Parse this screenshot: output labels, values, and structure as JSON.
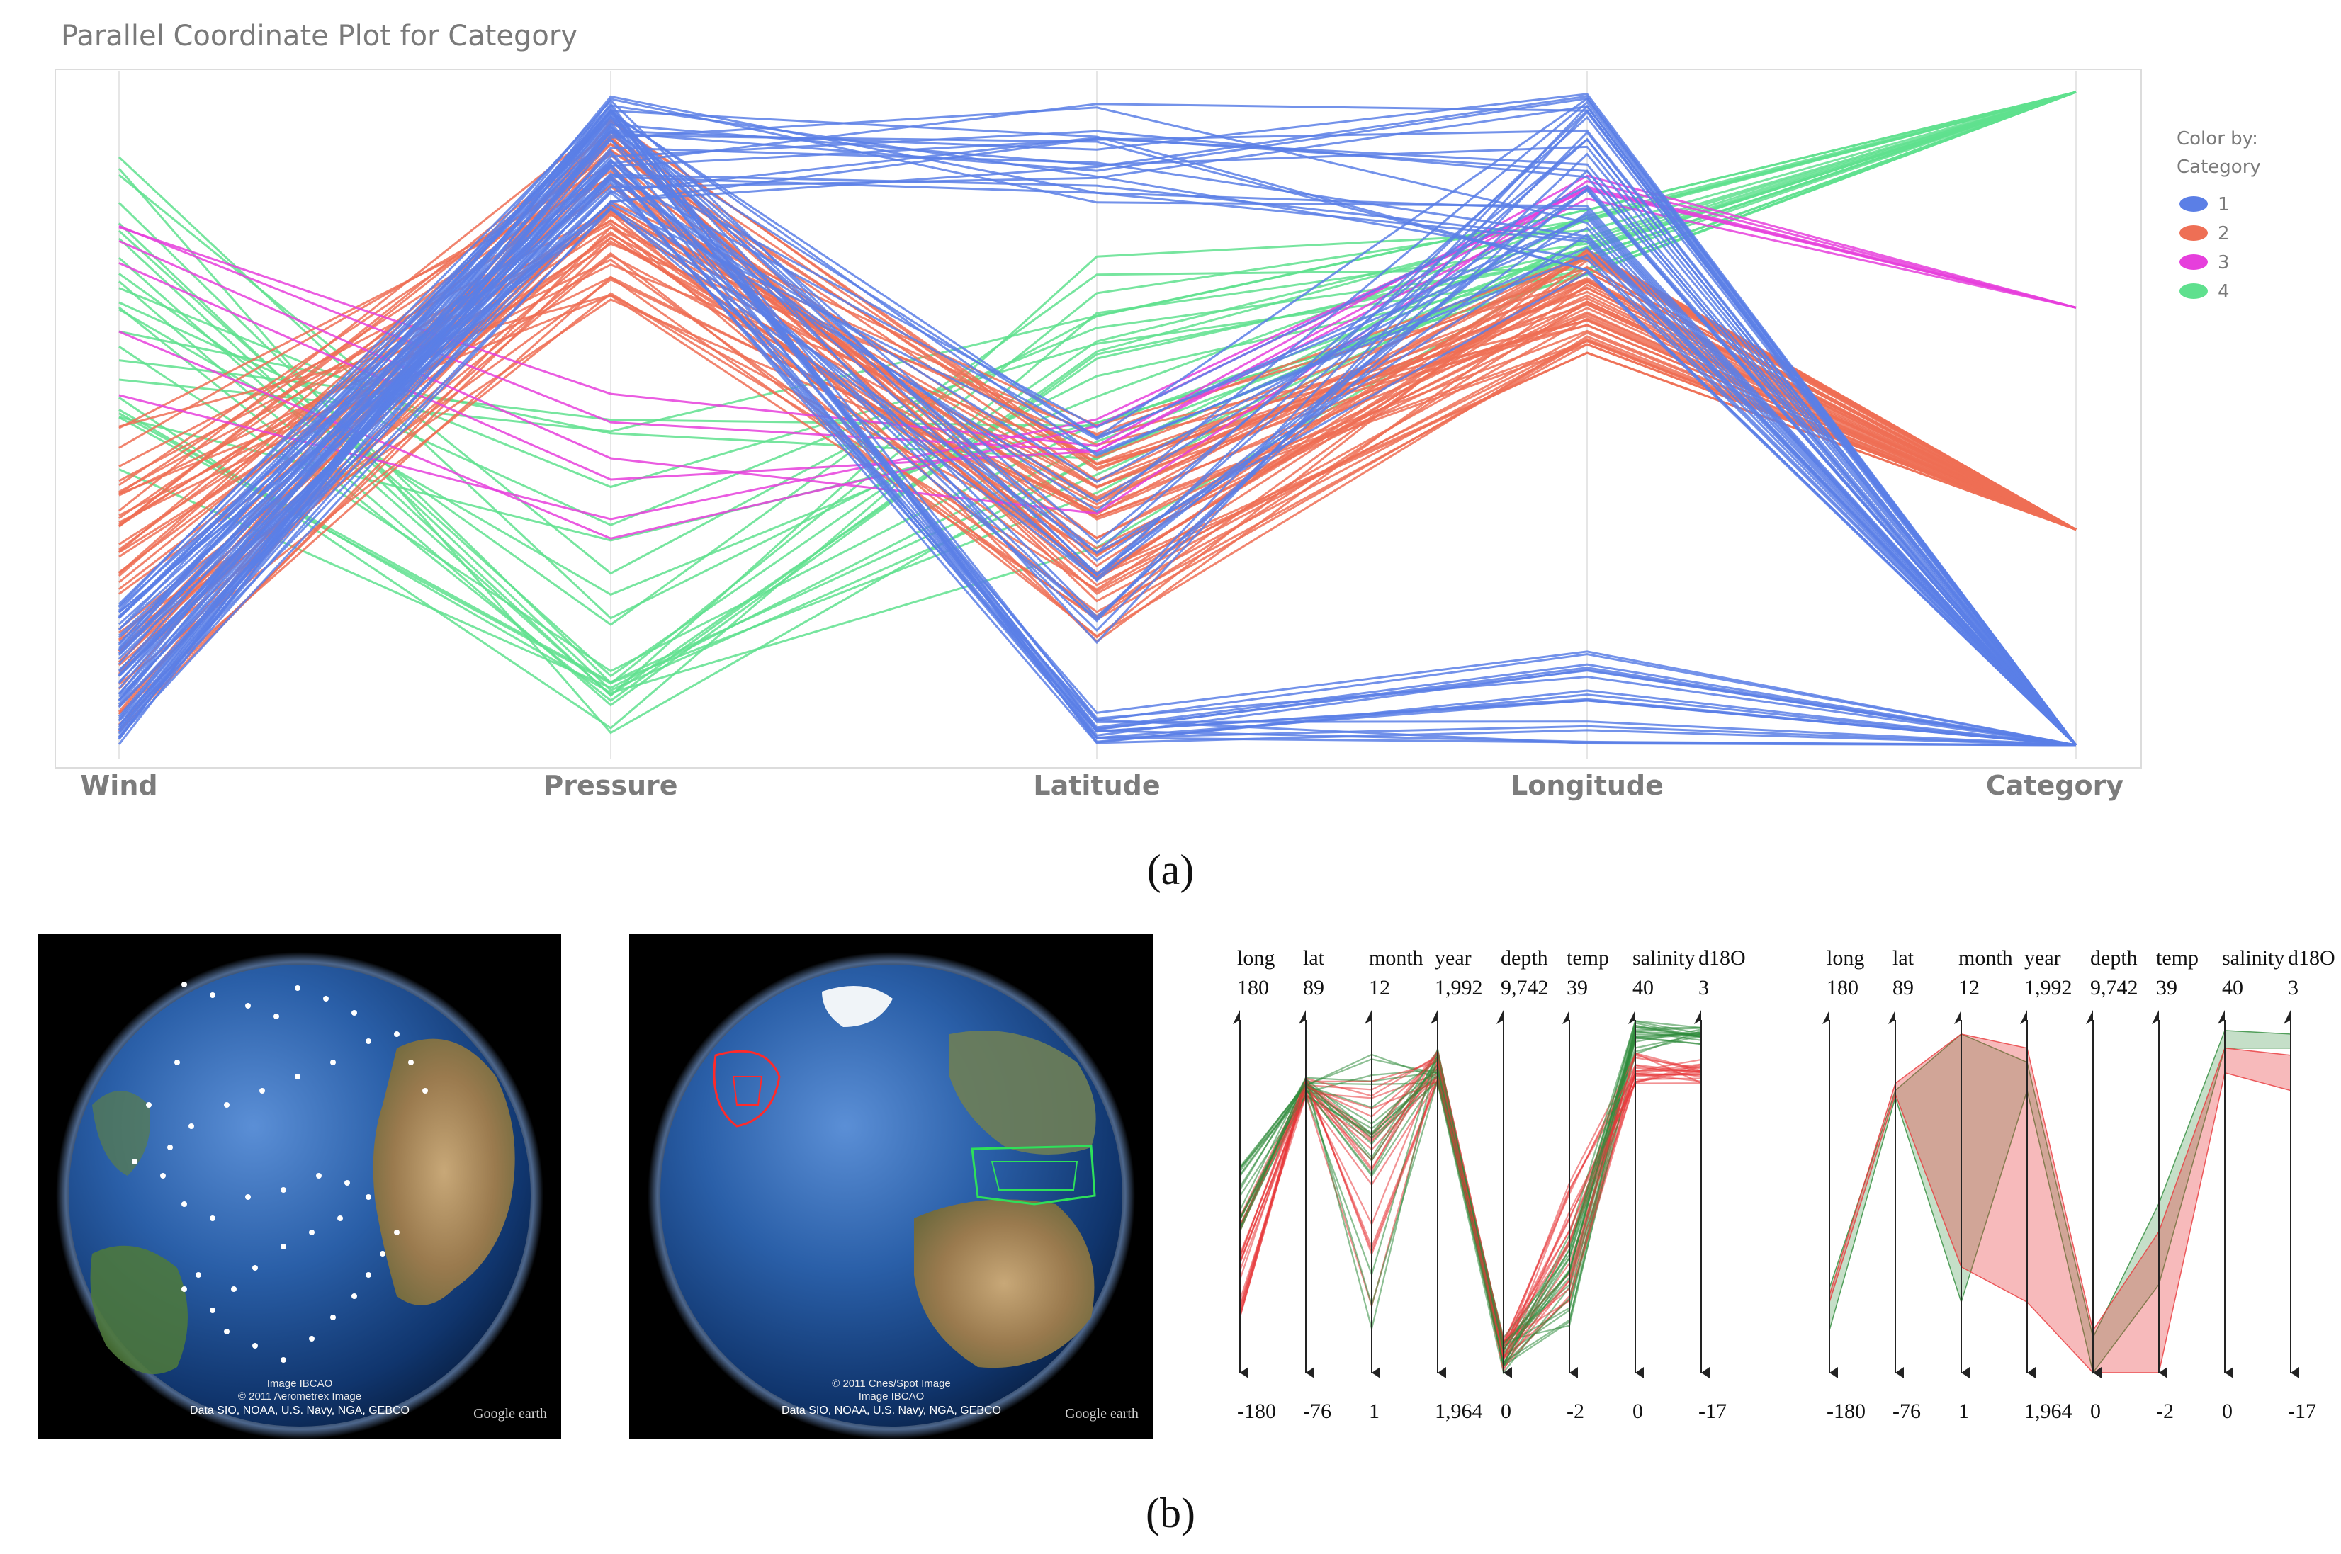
{
  "figure": {
    "caption_a": "(a)",
    "caption_b": "(b)"
  },
  "chart_data": [
    {
      "type": "parallel-coordinates",
      "title": "Parallel Coordinate Plot for Category",
      "axes": [
        "Wind",
        "Pressure",
        "Latitude",
        "Longitude",
        "Category"
      ],
      "legend": {
        "title_line1": "Color by:",
        "title_line2": "Category",
        "position": "right",
        "entries": [
          {
            "name": "1",
            "color": "#5B7FE6"
          },
          {
            "name": "2",
            "color": "#EE6F55"
          },
          {
            "name": "3",
            "color": "#E63FDC"
          },
          {
            "name": "4",
            "color": "#5FE08E"
          }
        ]
      },
      "grid": true,
      "approx_line_counts": {
        "1": 60,
        "2": 50,
        "3": 6,
        "4": 24
      }
    },
    {
      "type": "parallel-coordinates",
      "panel": "b-left",
      "style": "polylines",
      "axes": [
        {
          "name": "long",
          "max": "180",
          "min": "-180"
        },
        {
          "name": "lat",
          "max": "89",
          "min": "-76"
        },
        {
          "name": "month",
          "max": "12",
          "min": "1"
        },
        {
          "name": "year",
          "max": "1,992",
          "min": "1,964"
        },
        {
          "name": "depth",
          "max": "9,742",
          "min": "0"
        },
        {
          "name": "temp",
          "max": "39",
          "min": "-2"
        },
        {
          "name": "salinity",
          "max": "40",
          "min": "0"
        },
        {
          "name": "d18O",
          "max": "3",
          "min": "-17"
        }
      ],
      "series": [
        {
          "name": "red selection",
          "color": "#E8383B"
        },
        {
          "name": "green selection",
          "color": "#2E8B3A"
        }
      ]
    },
    {
      "type": "parallel-coordinates",
      "panel": "b-right",
      "style": "bands",
      "axes": [
        {
          "name": "long",
          "max": "180",
          "min": "-180"
        },
        {
          "name": "lat",
          "max": "89",
          "min": "-76"
        },
        {
          "name": "month",
          "max": "12",
          "min": "1"
        },
        {
          "name": "year",
          "max": "1,992",
          "min": "1,964"
        },
        {
          "name": "depth",
          "max": "9,742",
          "min": "0"
        },
        {
          "name": "temp",
          "max": "39",
          "min": "-2"
        },
        {
          "name": "salinity",
          "max": "40",
          "min": "0"
        },
        {
          "name": "d18O",
          "max": "3",
          "min": "-17"
        }
      ],
      "series": [
        {
          "name": "red selection",
          "color": "#E8383B"
        },
        {
          "name": "green selection",
          "color": "#2E8B3A"
        }
      ]
    }
  ],
  "globes": [
    {
      "credit1": "Image IBCAO",
      "credit2": "© 2011 Aerometrex Image",
      "credit3": "Data SIO, NOAA, U.S. Navy, NGA, GEBCO",
      "brand": "Google earth"
    },
    {
      "credit1": "© 2011 Cnes/Spot Image",
      "credit2": "Image IBCAO",
      "credit3": "Data SIO, NOAA, U.S. Navy, NGA, GEBCO",
      "brand": "Google earth"
    }
  ]
}
